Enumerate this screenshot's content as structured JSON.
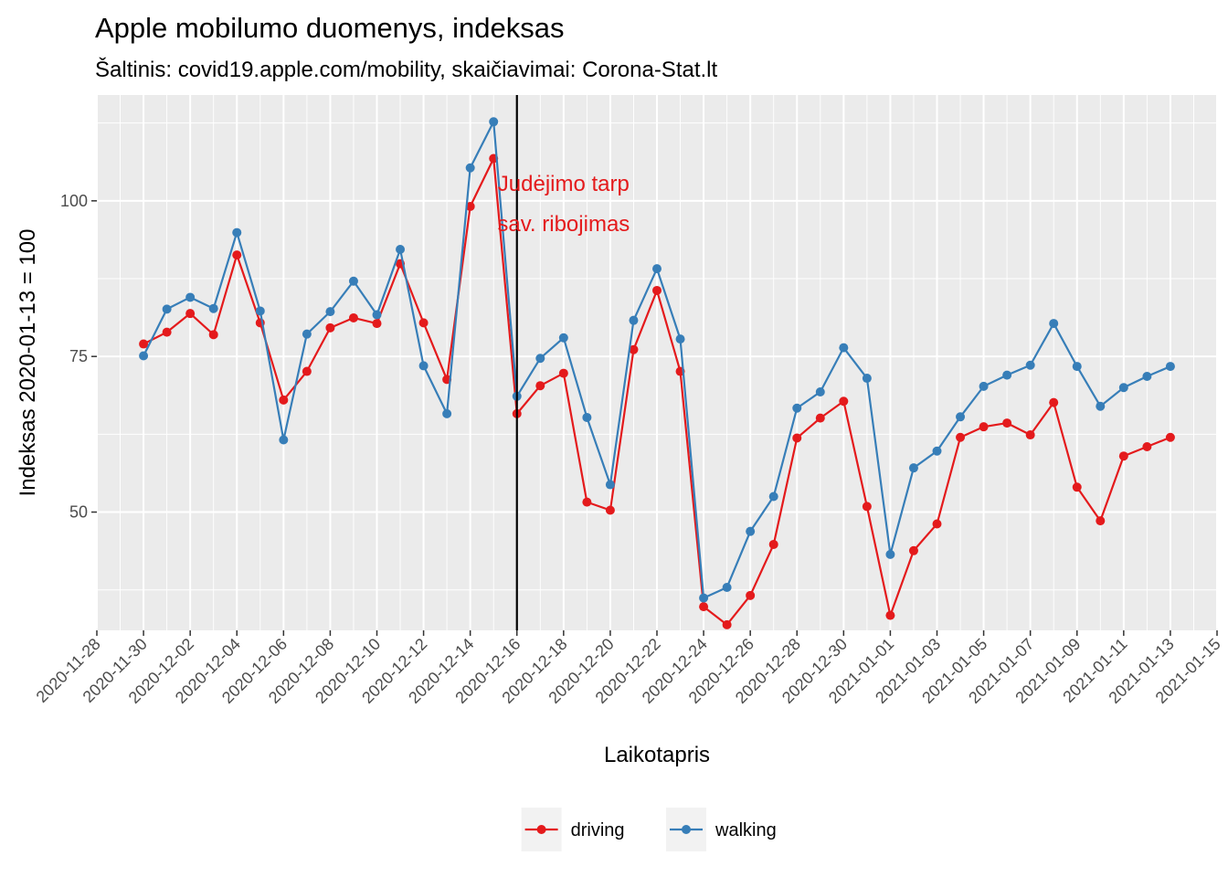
{
  "chart_data": {
    "type": "line",
    "title": "Apple mobilumo duomenys, indeksas",
    "subtitle": "Šaltinis: covid19.apple.com/mobility, skaičiavimai: Corona-Stat.lt",
    "xlabel": "Laikotapris",
    "ylabel": "Indeksas 2020-01-13 = 100",
    "x_start": "2020-11-30",
    "x": [
      "2020-11-30",
      "2020-12-01",
      "2020-12-02",
      "2020-12-03",
      "2020-12-04",
      "2020-12-05",
      "2020-12-06",
      "2020-12-07",
      "2020-12-08",
      "2020-12-09",
      "2020-12-10",
      "2020-12-11",
      "2020-12-12",
      "2020-12-13",
      "2020-12-14",
      "2020-12-15",
      "2020-12-16",
      "2020-12-17",
      "2020-12-18",
      "2020-12-19",
      "2020-12-20",
      "2020-12-21",
      "2020-12-22",
      "2020-12-23",
      "2020-12-24",
      "2020-12-25",
      "2020-12-26",
      "2020-12-27",
      "2020-12-28",
      "2020-12-29",
      "2020-12-30",
      "2020-12-31",
      "2021-01-01",
      "2021-01-02",
      "2021-01-03",
      "2021-01-04",
      "2021-01-05",
      "2021-01-06",
      "2021-01-07",
      "2021-01-08",
      "2021-01-09",
      "2021-01-10",
      "2021-01-11",
      "2021-01-12",
      "2021-01-13"
    ],
    "xlim": [
      "2020-11-28",
      "2021-01-15"
    ],
    "ylim": [
      31,
      117
    ],
    "x_ticks": [
      "2020-11-28",
      "2020-11-30",
      "2020-12-02",
      "2020-12-04",
      "2020-12-06",
      "2020-12-08",
      "2020-12-10",
      "2020-12-12",
      "2020-12-14",
      "2020-12-16",
      "2020-12-18",
      "2020-12-20",
      "2020-12-22",
      "2020-12-24",
      "2020-12-26",
      "2020-12-28",
      "2020-12-30",
      "2021-01-01",
      "2021-01-03",
      "2021-01-05",
      "2021-01-07",
      "2021-01-09",
      "2021-01-11",
      "2021-01-13",
      "2021-01-15"
    ],
    "y_ticks": [
      50,
      75,
      100
    ],
    "grid": true,
    "background": "#ebebeb",
    "series": [
      {
        "name": "driving",
        "color": "#e41a1c",
        "values": [
          77.0,
          78.9,
          81.9,
          78.5,
          91.3,
          80.4,
          68.0,
          72.6,
          79.6,
          81.2,
          80.3,
          89.9,
          80.4,
          71.3,
          99.1,
          106.8,
          65.8,
          70.3,
          72.3,
          51.6,
          50.3,
          76.1,
          85.6,
          72.6,
          34.8,
          31.9,
          36.6,
          44.8,
          61.9,
          65.1,
          67.8,
          50.9,
          33.4,
          43.8,
          48.1,
          62.0,
          63.7,
          64.3,
          62.4,
          67.6,
          54.0,
          48.6,
          59.0,
          60.5,
          62.0
        ]
      },
      {
        "name": "walking",
        "color": "#377eb8",
        "values": [
          75.1,
          82.6,
          84.5,
          82.7,
          94.9,
          82.3,
          61.6,
          78.6,
          82.2,
          87.1,
          81.7,
          92.2,
          73.5,
          65.8,
          105.3,
          112.7,
          68.6,
          74.7,
          78.0,
          65.2,
          54.4,
          80.8,
          89.1,
          77.8,
          36.2,
          37.9,
          46.9,
          52.5,
          66.7,
          69.3,
          76.4,
          71.5,
          43.2,
          57.1,
          59.8,
          65.3,
          70.2,
          72.0,
          73.6,
          80.3,
          73.4,
          67.0,
          70.0,
          71.8,
          73.4
        ]
      }
    ],
    "vline": {
      "x": "2020-12-16",
      "color": "#000000"
    },
    "annotation": {
      "lines": [
        "Judėjimo tarp",
        "sav. ribojimas"
      ],
      "x": "2020-12-18",
      "y": 99.5,
      "color": "#e41a1c"
    },
    "legend": {
      "position": "bottom",
      "entries": [
        "driving",
        "walking"
      ]
    }
  }
}
